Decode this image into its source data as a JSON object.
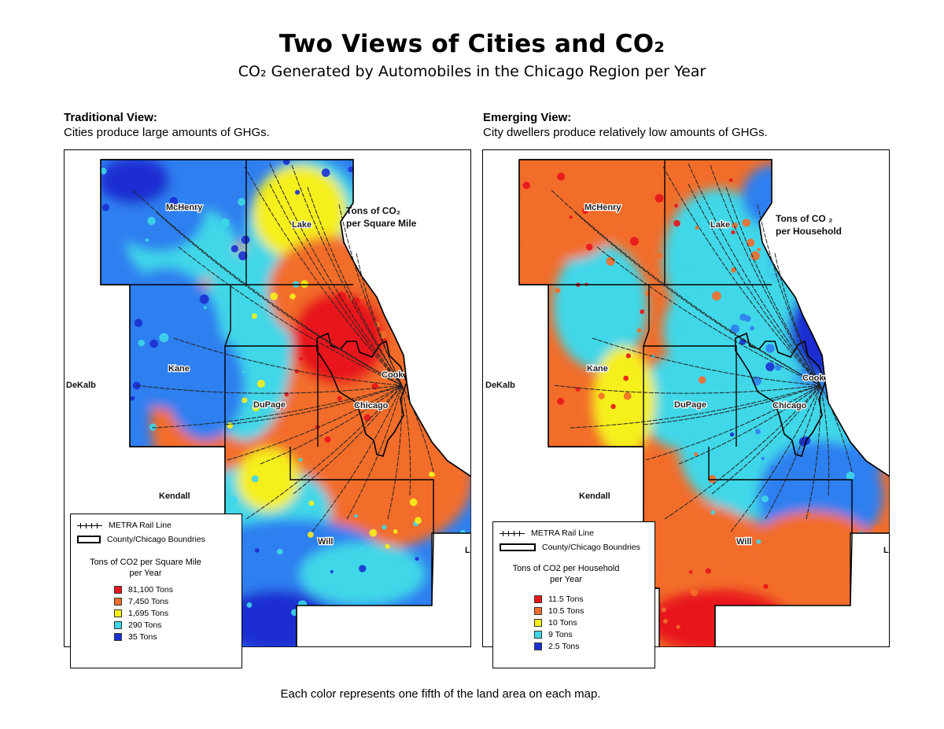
{
  "title": "Two Views of Cities and CO₂",
  "subtitle": "CO₂ Generated by Automobiles in the Chicago Region per Year",
  "left_panel": {
    "heading": "Traditional View:",
    "caption": "Cities produce large amounts of GHGs.",
    "unit_label_line1": "Tons of CO₂",
    "unit_label_line2": "per Square Mile",
    "legend": {
      "rail": "METRA Rail Line",
      "boundary": "County/Chicago Boundries",
      "title_line1": "Tons of CO2 per Square Mile",
      "title_line2": "per Year",
      "classes": [
        {
          "label": "81,100 Tons",
          "color": "#e8141b"
        },
        {
          "label": "7,450 Tons",
          "color": "#f26d2a"
        },
        {
          "label": "1,695 Tons",
          "color": "#f5ef1a"
        },
        {
          "label": "290 Tons",
          "color": "#3fd7e8"
        },
        {
          "label": "35 Tons",
          "color": "#1b2fd1"
        }
      ]
    }
  },
  "right_panel": {
    "heading": "Emerging View:",
    "caption": "City dwellers produce relatively low amounts of GHGs.",
    "unit_label_line1": "Tons of CO ₂",
    "unit_label_line2": "per Household",
    "legend": {
      "rail": "METRA Rail Line",
      "boundary": "County/Chicago Boundries",
      "title_line1": "Tons of CO2 per Household",
      "title_line2": "per Year",
      "classes": [
        {
          "label": "11.5 Tons",
          "color": "#e8141b"
        },
        {
          "label": "10.5 Tons",
          "color": "#f26d2a"
        },
        {
          "label": "10   Tons",
          "color": "#f5ef1a"
        },
        {
          "label": "9    Tons",
          "color": "#3fd7e8"
        },
        {
          "label": "2.5 Tons",
          "color": "#1b2fd1"
        }
      ]
    }
  },
  "places": {
    "mchenry": "McHenry",
    "lake": "Lake",
    "kane": "Kane",
    "cook": "Cook",
    "dekalb": "DeKalb",
    "dupage": "DuPage",
    "chicago": "Chicago",
    "kendall": "Kendall",
    "will": "Will",
    "edge": "L"
  },
  "footnote": "Each color represents one fifth of the land area on each map.",
  "colors": {
    "deep_blue": "#1b2fd1",
    "blue": "#2f7ff0",
    "cyan": "#3fd7e8",
    "yellow": "#f5ef1a",
    "orange": "#f26d2a",
    "red": "#e8141b"
  }
}
